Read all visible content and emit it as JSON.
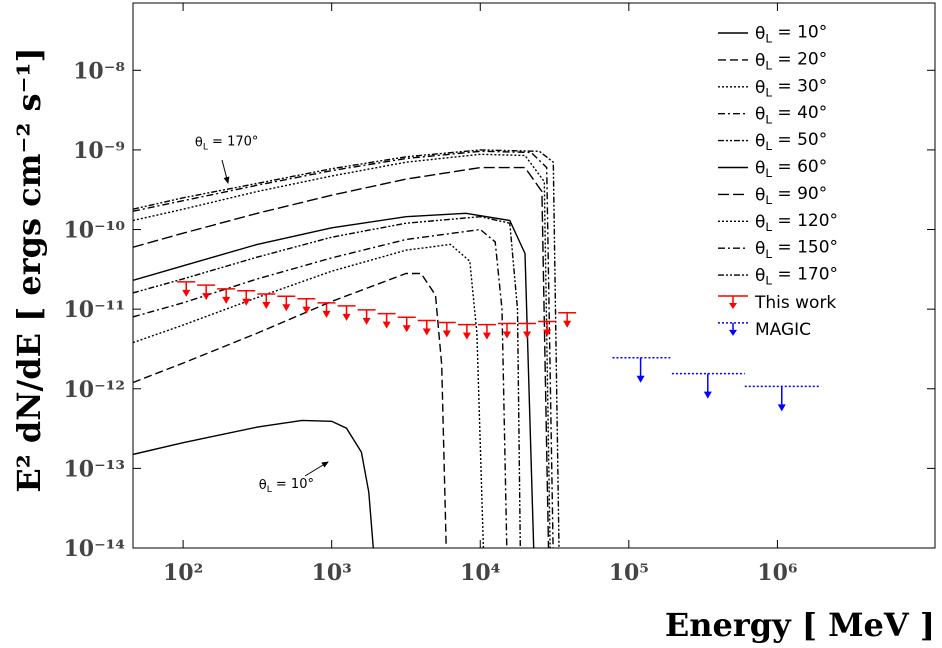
{
  "chart_data": {
    "type": "line",
    "xlabel": "Energy [ MeV ]",
    "ylabel": "E² dN/dE [ ergs cm⁻² s⁻¹]",
    "log_x": true,
    "log_y": true,
    "xlim": [
      46,
      11500000
    ],
    "ylim": [
      1e-14,
      7e-08
    ],
    "xticks": [
      {
        "value": 100,
        "label": "10²"
      },
      {
        "value": 1000,
        "label": "10³"
      },
      {
        "value": 10000,
        "label": "10⁴"
      },
      {
        "value": 100000,
        "label": "10⁵"
      },
      {
        "value": 1000000,
        "label": "10⁶"
      }
    ],
    "yticks": [
      {
        "value": 1e-14,
        "label": "10⁻¹⁴"
      },
      {
        "value": 1e-13,
        "label": "10⁻¹³"
      },
      {
        "value": 1e-12,
        "label": "10⁻¹²"
      },
      {
        "value": 1e-11,
        "label": "10⁻¹¹"
      },
      {
        "value": 1e-10,
        "label": "10⁻¹⁰"
      },
      {
        "value": 1e-09,
        "label": "10⁻⁹"
      },
      {
        "value": 1e-08,
        "label": "10⁻⁸"
      }
    ],
    "legend": "upper right",
    "series": [
      {
        "name": "θL = 10°",
        "color": "#000000",
        "linestyle": "solid",
        "x": [
          46,
          100,
          316,
          631,
          1000,
          1259,
          1585,
          1778,
          1905
        ],
        "values": [
          1.5e-13,
          2.1e-13,
          3.3e-13,
          4e-13,
          3.9e-13,
          3.2e-13,
          1.6e-13,
          5e-14,
          1e-14
        ]
      },
      {
        "name": "θL = 20°",
        "color": "#000000",
        "linestyle": "dashed",
        "x": [
          46,
          100,
          316,
          1000,
          3162,
          4000,
          5000,
          5500,
          5900
        ],
        "values": [
          1.2e-12,
          2.1e-12,
          5e-12,
          1.25e-11,
          2.8e-11,
          2.8e-11,
          1.5e-11,
          2e-12,
          1e-14
        ]
      },
      {
        "name": "θL = 30°",
        "color": "#000000",
        "linestyle": "dotted",
        "x": [
          46,
          100,
          316,
          1000,
          3162,
          6310,
          8500,
          9500,
          10500
        ],
        "values": [
          3.8e-12,
          6.3e-12,
          1.4e-11,
          3e-11,
          5.5e-11,
          6.5e-11,
          4e-11,
          5e-12,
          1e-14
        ]
      },
      {
        "name": "θL = 40°",
        "color": "#000000",
        "linestyle": "dashdot",
        "x": [
          46,
          100,
          316,
          1000,
          3162,
          10000,
          12600,
          14000,
          15100
        ],
        "values": [
          8e-12,
          1.2e-11,
          2.4e-11,
          4.4e-11,
          7.5e-11,
          1e-10,
          7e-11,
          1e-11,
          1e-14
        ]
      },
      {
        "name": "θL = 50°",
        "color": "#000000",
        "linestyle": "dashdotdot",
        "x": [
          46,
          100,
          316,
          1000,
          3162,
          10000,
          15800,
          17800,
          18600
        ],
        "values": [
          1.6e-11,
          2.4e-11,
          4.5e-11,
          8e-11,
          1.2e-10,
          1.45e-10,
          1.2e-10,
          1e-11,
          1e-14
        ]
      },
      {
        "name": "θL = 60°",
        "color": "#000000",
        "linestyle": "solid",
        "x": [
          46,
          100,
          316,
          1000,
          3162,
          8000,
          15800,
          20000,
          22900
        ],
        "values": [
          2.3e-11,
          3.5e-11,
          6.5e-11,
          1.05e-10,
          1.45e-10,
          1.6e-10,
          1.3e-10,
          5e-11,
          1e-14
        ]
      },
      {
        "name": "θL = 90°",
        "color": "#000000",
        "linestyle": "longdash",
        "x": [
          46,
          100,
          316,
          1000,
          3162,
          10000,
          20000,
          26000,
          28800
        ],
        "values": [
          6e-11,
          9e-11,
          1.6e-10,
          2.7e-10,
          4.3e-10,
          6e-10,
          6e-10,
          3e-10,
          1e-14
        ]
      },
      {
        "name": "θL = 120°",
        "color": "#000000",
        "linestyle": "dotted",
        "x": [
          46,
          100,
          316,
          1000,
          3162,
          10000,
          20000,
          27000,
          29500
        ],
        "values": [
          1.3e-10,
          1.8e-10,
          3e-10,
          4.7e-10,
          7e-10,
          8.8e-10,
          8.5e-10,
          4e-10,
          1e-14
        ]
      },
      {
        "name": "θL = 150°",
        "color": "#000000",
        "linestyle": "dashdot",
        "x": [
          46,
          100,
          316,
          1000,
          3162,
          10000,
          22000,
          28000,
          30900
        ],
        "values": [
          1.7e-10,
          2.3e-10,
          3.6e-10,
          5.5e-10,
          7.8e-10,
          9.6e-10,
          9.3e-10,
          6e-10,
          1e-14
        ]
      },
      {
        "name": "θL = 170°",
        "color": "#000000",
        "linestyle": "dashdotdot",
        "x": [
          46,
          100,
          316,
          1000,
          3162,
          10000,
          25000,
          31000,
          33900
        ],
        "values": [
          1.8e-10,
          2.5e-10,
          3.8e-10,
          5.8e-10,
          8.2e-10,
          1e-09,
          9.6e-10,
          7e-10,
          1e-14
        ]
      },
      {
        "name": "This work",
        "color": "#ff0000",
        "kind": "upper_limit",
        "linestyle": "solid",
        "x": [
          105,
          143,
          195,
          266,
          363,
          495,
          676,
          923,
          1259,
          1718,
          2344,
          3199,
          4365,
          5957,
          8128,
          11092,
          15136,
          20654,
          28184,
          38459
        ],
        "values": [
          2.2e-11,
          2e-11,
          1.8e-11,
          1.7e-11,
          1.55e-11,
          1.45e-11,
          1.35e-11,
          1.2e-11,
          1.1e-11,
          9.8e-12,
          8.8e-12,
          7.9e-12,
          7.2e-12,
          6.8e-12,
          6.4e-12,
          6.4e-12,
          6.6e-12,
          6.6e-12,
          7e-12,
          9e-12
        ]
      },
      {
        "name": "MAGIC",
        "color": "#0000ff",
        "kind": "upper_limit",
        "linestyle": "dotted",
        "x": [
          120000,
          340000,
          1070000
        ],
        "x_low": [
          77600,
          195000,
          603000
        ],
        "x_high": [
          190000,
          603000,
          1950000
        ],
        "values": [
          2.45e-12,
          1.55e-12,
          1.07e-12
        ]
      }
    ],
    "annotations": [
      {
        "text": "θL = 170°",
        "x": 120,
        "y": 1.1e-09
      },
      {
        "text": "θL = 10°",
        "x": 600,
        "y": 5.5e-14
      }
    ]
  }
}
